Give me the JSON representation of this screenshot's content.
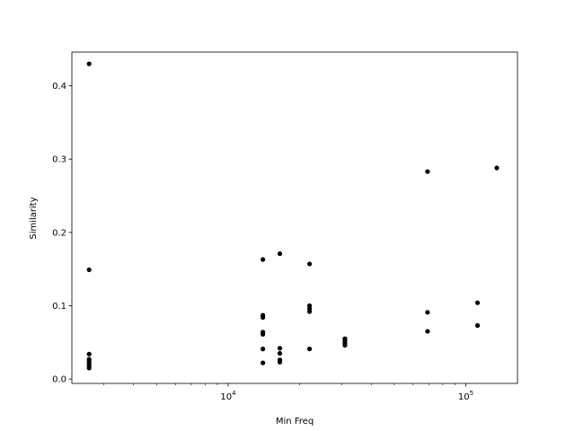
{
  "chart_data": {
    "type": "scatter",
    "title": "",
    "xlabel": "Min Freq",
    "ylabel": "Similarity",
    "xscale": "log",
    "xlim": [
      2200,
      165000
    ],
    "ylim": [
      -0.006,
      0.446
    ],
    "grid": false,
    "marker_color": "#000000",
    "x_ticks": [
      {
        "value": 10000,
        "base": "10",
        "exp": "4"
      },
      {
        "value": 100000,
        "base": "10",
        "exp": "5"
      }
    ],
    "y_ticks": [
      {
        "value": 0.0,
        "label": "0.0"
      },
      {
        "value": 0.1,
        "label": "0.1"
      },
      {
        "value": 0.2,
        "label": "0.2"
      },
      {
        "value": 0.3,
        "label": "0.3"
      },
      {
        "value": 0.4,
        "label": "0.4"
      }
    ],
    "points": [
      {
        "x": 2600,
        "y": 0.43
      },
      {
        "x": 2600,
        "y": 0.149
      },
      {
        "x": 2600,
        "y": 0.034
      },
      {
        "x": 2600,
        "y": 0.027
      },
      {
        "x": 2600,
        "y": 0.024
      },
      {
        "x": 2600,
        "y": 0.021
      },
      {
        "x": 2600,
        "y": 0.018
      },
      {
        "x": 2600,
        "y": 0.015
      },
      {
        "x": 14000,
        "y": 0.163
      },
      {
        "x": 14000,
        "y": 0.087
      },
      {
        "x": 14000,
        "y": 0.084
      },
      {
        "x": 14000,
        "y": 0.064
      },
      {
        "x": 14000,
        "y": 0.061
      },
      {
        "x": 14000,
        "y": 0.041
      },
      {
        "x": 14000,
        "y": 0.022
      },
      {
        "x": 16500,
        "y": 0.171
      },
      {
        "x": 16500,
        "y": 0.042
      },
      {
        "x": 16500,
        "y": 0.035
      },
      {
        "x": 16500,
        "y": 0.026
      },
      {
        "x": 16500,
        "y": 0.023
      },
      {
        "x": 22000,
        "y": 0.157
      },
      {
        "x": 22000,
        "y": 0.1
      },
      {
        "x": 22000,
        "y": 0.096
      },
      {
        "x": 22000,
        "y": 0.092
      },
      {
        "x": 22000,
        "y": 0.041
      },
      {
        "x": 31000,
        "y": 0.055
      },
      {
        "x": 31000,
        "y": 0.052
      },
      {
        "x": 31000,
        "y": 0.049
      },
      {
        "x": 31000,
        "y": 0.046
      },
      {
        "x": 69000,
        "y": 0.283
      },
      {
        "x": 69000,
        "y": 0.091
      },
      {
        "x": 69000,
        "y": 0.065
      },
      {
        "x": 112000,
        "y": 0.104
      },
      {
        "x": 112000,
        "y": 0.073
      },
      {
        "x": 135000,
        "y": 0.288
      }
    ]
  }
}
